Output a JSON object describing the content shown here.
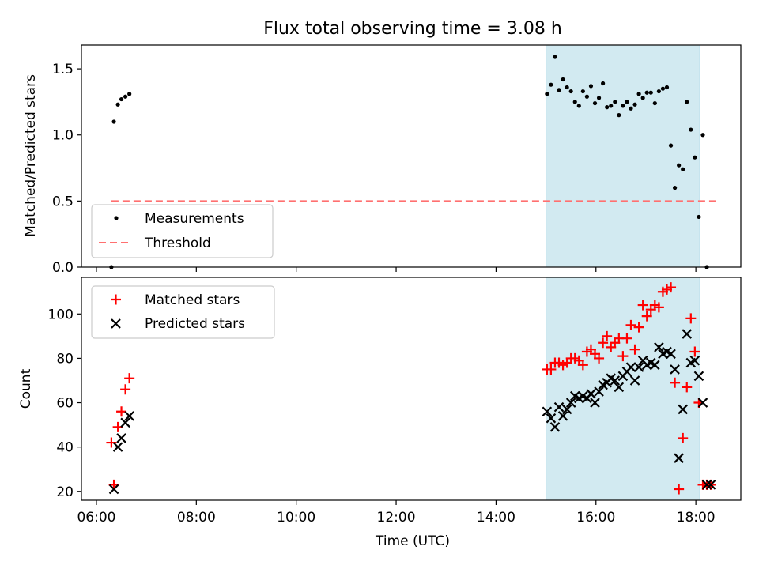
{
  "title": "Flux total observing time = 3.08 h",
  "colors": {
    "highlight": "#add8e6",
    "measurement": "#000000",
    "threshold": "#ff7070",
    "matched": "#ff0000",
    "predicted": "#000000"
  },
  "chart_data": [
    {
      "type": "scatter",
      "ylabel": "Matched/Predicted stars",
      "xlabel": "",
      "xlim": [
        5.7,
        18.9
      ],
      "ylim": [
        0,
        1.68
      ],
      "yticks": [
        0,
        0.5,
        1.0,
        1.5
      ],
      "ytick_labels": [
        "0.0",
        "0.5",
        "1.0",
        "1.5"
      ],
      "highlight_span": [
        15.0,
        18.08
      ],
      "legend": {
        "position": "lower-left",
        "entries": [
          "Measurements",
          "Threshold"
        ]
      },
      "threshold": {
        "name": "Threshold",
        "value": 0.5,
        "x": [
          6.3,
          18.4
        ]
      },
      "series": [
        {
          "name": "Measurements",
          "points": [
            [
              6.3,
              0.0
            ],
            [
              6.35,
              1.1
            ],
            [
              6.43,
              1.23
            ],
            [
              6.5,
              1.27
            ],
            [
              6.58,
              1.29
            ],
            [
              6.66,
              1.31
            ],
            [
              15.02,
              1.31
            ],
            [
              15.1,
              1.38
            ],
            [
              15.18,
              1.59
            ],
            [
              15.26,
              1.34
            ],
            [
              15.34,
              1.42
            ],
            [
              15.42,
              1.36
            ],
            [
              15.5,
              1.33
            ],
            [
              15.58,
              1.25
            ],
            [
              15.66,
              1.22
            ],
            [
              15.74,
              1.33
            ],
            [
              15.82,
              1.29
            ],
            [
              15.9,
              1.37
            ],
            [
              15.98,
              1.24
            ],
            [
              16.06,
              1.28
            ],
            [
              16.14,
              1.39
            ],
            [
              16.22,
              1.21
            ],
            [
              16.3,
              1.22
            ],
            [
              16.38,
              1.25
            ],
            [
              16.46,
              1.15
            ],
            [
              16.54,
              1.22
            ],
            [
              16.62,
              1.25
            ],
            [
              16.7,
              1.2
            ],
            [
              16.78,
              1.23
            ],
            [
              16.86,
              1.31
            ],
            [
              16.94,
              1.28
            ],
            [
              17.02,
              1.32
            ],
            [
              17.1,
              1.32
            ],
            [
              17.18,
              1.24
            ],
            [
              17.26,
              1.33
            ],
            [
              17.34,
              1.35
            ],
            [
              17.42,
              1.36
            ],
            [
              17.5,
              0.92
            ],
            [
              17.58,
              0.6
            ],
            [
              17.66,
              0.77
            ],
            [
              17.74,
              0.74
            ],
            [
              17.82,
              1.25
            ],
            [
              17.9,
              1.04
            ],
            [
              17.98,
              0.83
            ],
            [
              18.06,
              0.38
            ],
            [
              18.14,
              1.0
            ],
            [
              18.22,
              0.0
            ]
          ]
        }
      ]
    },
    {
      "type": "scatter",
      "xlabel": "Time (UTC)",
      "ylabel": "Count",
      "xlim": [
        5.7,
        18.9
      ],
      "ylim": [
        16,
        116.5
      ],
      "xticks": [
        6,
        8,
        10,
        12,
        14,
        16,
        18
      ],
      "xtick_labels": [
        "06:00",
        "08:00",
        "10:00",
        "12:00",
        "14:00",
        "16:00",
        "18:00"
      ],
      "yticks": [
        20,
        40,
        60,
        80,
        100
      ],
      "ytick_labels": [
        "20",
        "40",
        "60",
        "80",
        "100"
      ],
      "highlight_span": [
        15.0,
        18.08
      ],
      "legend": {
        "position": "upper-left",
        "entries": [
          "Matched stars",
          "Predicted stars"
        ]
      },
      "series": [
        {
          "name": "Matched stars",
          "marker": "+",
          "points": [
            [
              6.3,
              42
            ],
            [
              6.35,
              23
            ],
            [
              6.43,
              49
            ],
            [
              6.5,
              56
            ],
            [
              6.58,
              66
            ],
            [
              6.66,
              71
            ],
            [
              15.02,
              75
            ],
            [
              15.1,
              75
            ],
            [
              15.18,
              78
            ],
            [
              15.26,
              78
            ],
            [
              15.34,
              77
            ],
            [
              15.42,
              78
            ],
            [
              15.5,
              80
            ],
            [
              15.58,
              80
            ],
            [
              15.66,
              79
            ],
            [
              15.74,
              77
            ],
            [
              15.82,
              83
            ],
            [
              15.9,
              84
            ],
            [
              15.98,
              82
            ],
            [
              16.06,
              80
            ],
            [
              16.14,
              87
            ],
            [
              16.22,
              90
            ],
            [
              16.3,
              85
            ],
            [
              16.38,
              87
            ],
            [
              16.46,
              89
            ],
            [
              16.54,
              81
            ],
            [
              16.62,
              89
            ],
            [
              16.7,
              95
            ],
            [
              16.78,
              84
            ],
            [
              16.86,
              94
            ],
            [
              16.94,
              104
            ],
            [
              17.02,
              99
            ],
            [
              17.1,
              102
            ],
            [
              17.18,
              104
            ],
            [
              17.26,
              103
            ],
            [
              17.34,
              110
            ],
            [
              17.42,
              111
            ],
            [
              17.5,
              112
            ],
            [
              17.58,
              69
            ],
            [
              17.66,
              21
            ],
            [
              17.74,
              44
            ],
            [
              17.82,
              67
            ],
            [
              17.9,
              98
            ],
            [
              17.98,
              83
            ],
            [
              18.06,
              60
            ],
            [
              18.14,
              23
            ],
            [
              18.22,
              23
            ],
            [
              18.3,
              23
            ]
          ]
        },
        {
          "name": "Predicted stars",
          "marker": "x",
          "points": [
            [
              6.35,
              21
            ],
            [
              6.43,
              40
            ],
            [
              6.5,
              44
            ],
            [
              6.58,
              51
            ],
            [
              6.66,
              54
            ],
            [
              15.02,
              56
            ],
            [
              15.1,
              53
            ],
            [
              15.18,
              49
            ],
            [
              15.26,
              58
            ],
            [
              15.34,
              54
            ],
            [
              15.42,
              57
            ],
            [
              15.5,
              60
            ],
            [
              15.58,
              63
            ],
            [
              15.66,
              62
            ],
            [
              15.74,
              63
            ],
            [
              15.82,
              62
            ],
            [
              15.9,
              64
            ],
            [
              15.98,
              60
            ],
            [
              16.06,
              65
            ],
            [
              16.14,
              68
            ],
            [
              16.22,
              69
            ],
            [
              16.3,
              71
            ],
            [
              16.38,
              70
            ],
            [
              16.46,
              67
            ],
            [
              16.54,
              72
            ],
            [
              16.62,
              74
            ],
            [
              16.7,
              76
            ],
            [
              16.78,
              70
            ],
            [
              16.86,
              76
            ],
            [
              16.94,
              79
            ],
            [
              17.02,
              77
            ],
            [
              17.1,
              78
            ],
            [
              17.18,
              77
            ],
            [
              17.26,
              85
            ],
            [
              17.34,
              82
            ],
            [
              17.42,
              83
            ],
            [
              17.5,
              82
            ],
            [
              17.58,
              75
            ],
            [
              17.66,
              35
            ],
            [
              17.74,
              57
            ],
            [
              17.82,
              91
            ],
            [
              17.9,
              78
            ],
            [
              17.98,
              79
            ],
            [
              18.06,
              72
            ],
            [
              18.14,
              60
            ],
            [
              18.22,
              23
            ],
            [
              18.3,
              23
            ]
          ]
        }
      ]
    }
  ]
}
